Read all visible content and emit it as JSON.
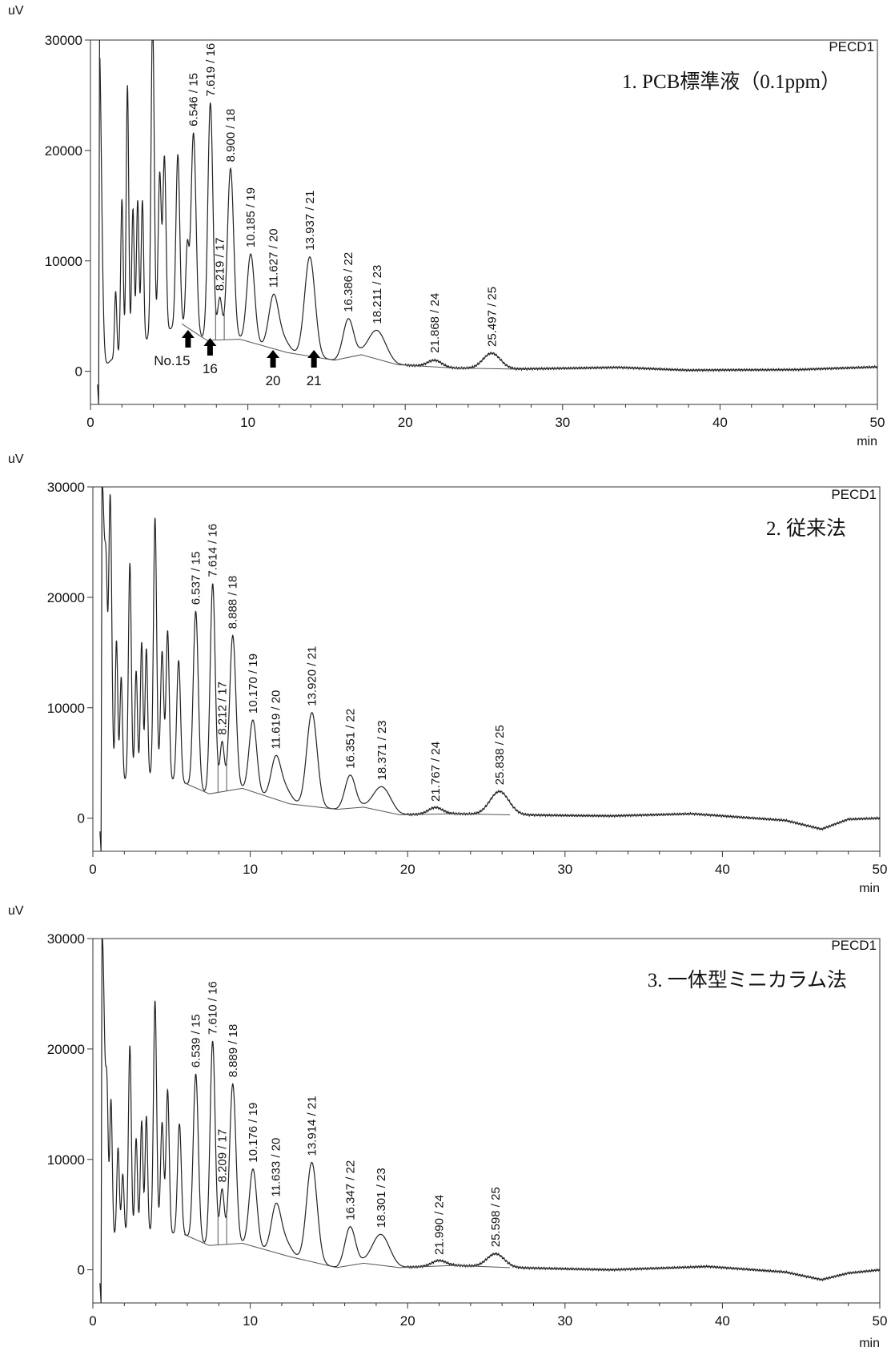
{
  "chart_data": [
    {
      "type": "line",
      "title": "1. PCB標準液（0.1ppm）",
      "detector": "PECD1",
      "ylabel": "uV",
      "xlabel": "min",
      "xlim": [
        0,
        50
      ],
      "ylim": [
        -3000,
        30000
      ],
      "x_ticks": [
        "0",
        "10",
        "20",
        "30",
        "40",
        "50"
      ],
      "y_ticks": [
        "0",
        "10000",
        "20000",
        "30000"
      ],
      "grid": false,
      "series": [
        {
          "peaks": [
            [
              0.55,
              30000,
              0.15
            ],
            [
              1.6,
              6000,
              0.07
            ],
            [
              2.0,
              14000,
              0.08
            ],
            [
              2.35,
              24000,
              0.08
            ],
            [
              2.7,
              12500,
              0.08
            ],
            [
              3.0,
              13000,
              0.08
            ],
            [
              3.3,
              12800,
              0.08
            ],
            [
              3.95,
              29000,
              0.1
            ],
            [
              4.4,
              14500,
              0.1
            ],
            [
              4.7,
              15800,
              0.1
            ],
            [
              5.55,
              15500,
              0.12
            ],
            [
              6.15,
              7000,
              0.1
            ],
            [
              6.546,
              18000,
              0.16
            ],
            [
              7.619,
              21500,
              0.16
            ],
            [
              8.219,
              3800,
              0.14
            ],
            [
              8.9,
              15500,
              0.2
            ],
            [
              10.185,
              8000,
              0.24
            ],
            [
              11.627,
              4500,
              0.3
            ],
            [
              12.2,
              1200,
              0.4
            ],
            [
              13.937,
              9000,
              0.33
            ],
            [
              16.386,
              3500,
              0.33
            ],
            [
              18.211,
              2600,
              0.55
            ],
            [
              21.868,
              600,
              0.45
            ],
            [
              25.497,
              1400,
              0.55
            ]
          ],
          "baseline": [
            [
              0.6,
              0
            ],
            [
              1.3,
              1000
            ],
            [
              3,
              2500
            ],
            [
              5.8,
              4300
            ],
            [
              7.4,
              2800
            ],
            [
              9.5,
              2900
            ],
            [
              12.5,
              1700
            ],
            [
              15.5,
              1000
            ],
            [
              17.2,
              1500
            ],
            [
              19.5,
              600
            ],
            [
              23,
              300
            ],
            [
              27,
              200
            ],
            [
              33.5,
              350
            ],
            [
              38,
              100
            ],
            [
              45,
              150
            ],
            [
              50,
              400
            ]
          ]
        }
      ],
      "peak_labels": [
        "6.546 / 15",
        "7.619 / 16",
        "8.219 / 17",
        "8.900 / 18",
        "10.185 / 19",
        "11.627 / 20",
        "13.937 / 21",
        "16.386 / 22",
        "18.211 / 23",
        "21.868 / 24",
        "25.497 / 25"
      ],
      "annotations": [
        {
          "text": "No.15",
          "x": 6.2
        },
        {
          "text": "16",
          "x": 7.6
        },
        {
          "text": "20",
          "x": 11.6
        },
        {
          "text": "21",
          "x": 14.2
        }
      ]
    },
    {
      "type": "line",
      "title": "2. 従来法",
      "detector": "PECD1",
      "ylabel": "uV",
      "xlabel": "min",
      "xlim": [
        0,
        50
      ],
      "ylim": [
        -3000,
        30000
      ],
      "x_ticks": [
        "0",
        "10",
        "20",
        "30",
        "40",
        "50"
      ],
      "y_ticks": [
        "0",
        "10000",
        "20000",
        "30000"
      ],
      "grid": false,
      "series": [
        {
          "peaks": [
            [
              0.6,
              30000,
              0.15
            ],
            [
              0.85,
              14000,
              0.08
            ],
            [
              1.1,
              27000,
              0.1
            ],
            [
              1.5,
              13000,
              0.08
            ],
            [
              1.8,
              9500,
              0.08
            ],
            [
              2.35,
              19500,
              0.09
            ],
            [
              2.75,
              9500,
              0.08
            ],
            [
              3.1,
              12000,
              0.08
            ],
            [
              3.4,
              11500,
              0.08
            ],
            [
              3.95,
              23500,
              0.1
            ],
            [
              4.4,
              11500,
              0.1
            ],
            [
              4.75,
              13500,
              0.1
            ],
            [
              5.45,
              11000,
              0.12
            ],
            [
              6.537,
              16000,
              0.16
            ],
            [
              7.614,
              19000,
              0.16
            ],
            [
              8.212,
              4500,
              0.14
            ],
            [
              8.888,
              14000,
              0.2
            ],
            [
              10.17,
              6500,
              0.24
            ],
            [
              11.619,
              3500,
              0.3
            ],
            [
              12.2,
              1300,
              0.4
            ],
            [
              13.92,
              8500,
              0.33
            ],
            [
              16.351,
              3000,
              0.33
            ],
            [
              18.371,
              2200,
              0.55
            ],
            [
              21.767,
              600,
              0.45
            ],
            [
              25.838,
              2100,
              0.6
            ]
          ],
          "baseline": [
            [
              0.6,
              0
            ],
            [
              1.3,
              3000
            ],
            [
              3,
              4000
            ],
            [
              5.8,
              3200
            ],
            [
              7.4,
              2200
            ],
            [
              9.5,
              2700
            ],
            [
              12.5,
              1300
            ],
            [
              15.5,
              800
            ],
            [
              17.2,
              1000
            ],
            [
              19.5,
              300
            ],
            [
              23,
              400
            ],
            [
              26.5,
              300
            ],
            [
              33,
              200
            ],
            [
              38,
              400
            ],
            [
              44,
              -200
            ],
            [
              46.3,
              -1000
            ],
            [
              48,
              -100
            ],
            [
              50,
              0
            ]
          ]
        }
      ],
      "peak_labels": [
        "6.537 / 15",
        "7.614 / 16",
        "8.212 / 17",
        "8.888 / 18",
        "10.170 / 19",
        "11.619 / 20",
        "13.920 / 21",
        "16.351 / 22",
        "18.371 / 23",
        "21.767 / 24",
        "25.838 / 25"
      ],
      "annotations": []
    },
    {
      "type": "line",
      "title": "3. 一体型ミニカラム法",
      "detector": "PECD1",
      "ylabel": "uV",
      "xlabel": "min",
      "xlim": [
        0,
        50
      ],
      "ylim": [
        -3000,
        30000
      ],
      "x_ticks": [
        "0",
        "10",
        "20",
        "30",
        "40",
        "50"
      ],
      "y_ticks": [
        "0",
        "10000",
        "20000",
        "30000"
      ],
      "grid": false,
      "series": [
        {
          "peaks": [
            [
              0.6,
              30000,
              0.15
            ],
            [
              0.9,
              12000,
              0.08
            ],
            [
              1.15,
              13000,
              0.08
            ],
            [
              1.6,
              8000,
              0.08
            ],
            [
              1.9,
              5500,
              0.08
            ],
            [
              2.35,
              17000,
              0.09
            ],
            [
              2.75,
              8500,
              0.08
            ],
            [
              3.1,
              10000,
              0.08
            ],
            [
              3.4,
              10500,
              0.08
            ],
            [
              3.95,
              21000,
              0.1
            ],
            [
              4.4,
              10000,
              0.1
            ],
            [
              4.75,
              13000,
              0.1
            ],
            [
              5.5,
              10000,
              0.12
            ],
            [
              6.539,
              15000,
              0.16
            ],
            [
              7.61,
              18500,
              0.16
            ],
            [
              8.209,
              5000,
              0.14
            ],
            [
              8.889,
              14500,
              0.2
            ],
            [
              10.176,
              7000,
              0.24
            ],
            [
              11.633,
              4000,
              0.3
            ],
            [
              12.2,
              1300,
              0.4
            ],
            [
              13.914,
              9000,
              0.33
            ],
            [
              16.347,
              3500,
              0.33
            ],
            [
              18.301,
              2800,
              0.55
            ],
            [
              21.99,
              500,
              0.45
            ],
            [
              25.598,
              1200,
              0.55
            ]
          ],
          "baseline": [
            [
              0.6,
              0
            ],
            [
              1.3,
              3000
            ],
            [
              3,
              3500
            ],
            [
              5.8,
              3200
            ],
            [
              7.4,
              2200
            ],
            [
              9.5,
              2400
            ],
            [
              12.5,
              1200
            ],
            [
              15.5,
              200
            ],
            [
              17.2,
              600
            ],
            [
              19.5,
              200
            ],
            [
              23,
              400
            ],
            [
              26.5,
              200
            ],
            [
              33,
              0
            ],
            [
              39,
              300
            ],
            [
              44,
              -200
            ],
            [
              46.3,
              -900
            ],
            [
              48,
              -300
            ],
            [
              50,
              0
            ]
          ]
        }
      ],
      "peak_labels": [
        "6.539 / 15",
        "7.610 / 16",
        "8.209 / 17",
        "8.889 / 18",
        "10.176 / 19",
        "11.633 / 20",
        "13.914 / 21",
        "16.347 / 22",
        "18.301 / 23",
        "21.990 / 24",
        "25.598 / 25"
      ],
      "annotations": []
    }
  ]
}
